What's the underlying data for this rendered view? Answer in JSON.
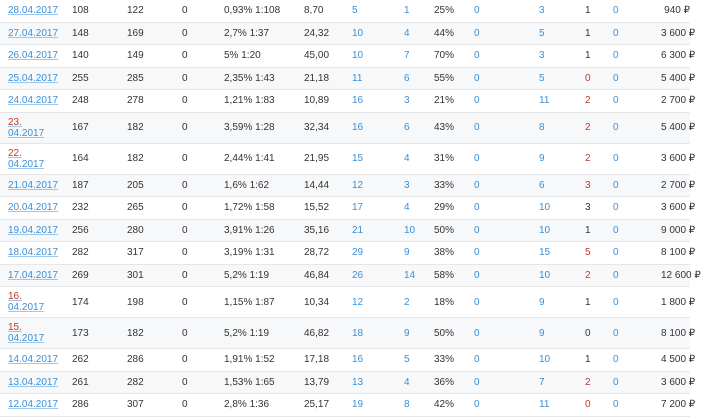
{
  "currency": "₽",
  "rows": [
    {
      "date": "28.04.2017",
      "split": false,
      "c1": "108",
      "c2": "122",
      "c3": "0",
      "c4": "0,93% 1:108",
      "c5": "8,70",
      "c6": "5",
      "c7": "1",
      "c8": "25%",
      "c9": "0",
      "c10": "3",
      "c11": "1",
      "c11red": false,
      "c12": "0",
      "c13": "940 ₽"
    },
    {
      "date": "27.04.2017",
      "split": false,
      "c1": "148",
      "c2": "169",
      "c3": "0",
      "c4": "2,7% 1:37",
      "c5": "24,32",
      "c6": "10",
      "c7": "4",
      "c8": "44%",
      "c9": "0",
      "c10": "5",
      "c11": "1",
      "c11red": false,
      "c12": "0",
      "c13": "3 600 ₽"
    },
    {
      "date": "26.04.2017",
      "split": false,
      "c1": "140",
      "c2": "149",
      "c3": "0",
      "c4": "5% 1:20",
      "c5": "45,00",
      "c6": "10",
      "c7": "7",
      "c8": "70%",
      "c9": "0",
      "c10": "3",
      "c11": "1",
      "c11red": false,
      "c12": "0",
      "c13": "6 300 ₽"
    },
    {
      "date": "25.04.2017",
      "split": false,
      "c1": "255",
      "c2": "285",
      "c3": "0",
      "c4": "2,35% 1:43",
      "c5": "21,18",
      "c6": "11",
      "c7": "6",
      "c8": "55%",
      "c9": "0",
      "c10": "5",
      "c11": "0",
      "c11red": true,
      "c12": "0",
      "c13": "5 400 ₽"
    },
    {
      "date": "24.04.2017",
      "split": false,
      "c1": "248",
      "c2": "278",
      "c3": "0",
      "c4": "1,21% 1:83",
      "c5": "10,89",
      "c6": "16",
      "c7": "3",
      "c8": "21%",
      "c9": "0",
      "c10": "11",
      "c11": "2",
      "c11red": true,
      "c12": "0",
      "c13": "2 700 ₽"
    },
    {
      "date1": "23.",
      "date2": "04.2017",
      "split": true,
      "c1": "167",
      "c2": "182",
      "c3": "0",
      "c4": "3,59% 1:28",
      "c5": "32,34",
      "c6": "16",
      "c7": "6",
      "c8": "43%",
      "c9": "0",
      "c10": "8",
      "c11": "2",
      "c11red": true,
      "c12": "0",
      "c13": "5 400 ₽"
    },
    {
      "date1": "22.",
      "date2": "04.2017",
      "split": true,
      "c1": "164",
      "c2": "182",
      "c3": "0",
      "c4": "2,44% 1:41",
      "c5": "21,95",
      "c6": "15",
      "c7": "4",
      "c8": "31%",
      "c9": "0",
      "c10": "9",
      "c11": "2",
      "c11red": true,
      "c12": "0",
      "c13": "3 600 ₽"
    },
    {
      "date": "21.04.2017",
      "split": false,
      "c1": "187",
      "c2": "205",
      "c3": "0",
      "c4": "1,6% 1:62",
      "c5": "14,44",
      "c6": "12",
      "c7": "3",
      "c8": "33%",
      "c9": "0",
      "c10": "6",
      "c11": "3",
      "c11red": true,
      "c12": "0",
      "c13": "2 700 ₽"
    },
    {
      "date": "20.04.2017",
      "split": false,
      "c1": "232",
      "c2": "265",
      "c3": "0",
      "c4": "1,72% 1:58",
      "c5": "15,52",
      "c6": "17",
      "c7": "4",
      "c8": "29%",
      "c9": "0",
      "c10": "10",
      "c11": "3",
      "c11red": false,
      "c12": "0",
      "c13": "3 600 ₽"
    },
    {
      "date": "19.04.2017",
      "split": false,
      "c1": "256",
      "c2": "280",
      "c3": "0",
      "c4": "3,91% 1:26",
      "c5": "35,16",
      "c6": "21",
      "c7": "10",
      "c8": "50%",
      "c9": "0",
      "c10": "10",
      "c11": "1",
      "c11red": false,
      "c12": "0",
      "c13": "9 000 ₽"
    },
    {
      "date": "18.04.2017",
      "split": false,
      "c1": "282",
      "c2": "317",
      "c3": "0",
      "c4": "3,19% 1:31",
      "c5": "28,72",
      "c6": "29",
      "c7": "9",
      "c8": "38%",
      "c9": "0",
      "c10": "15",
      "c11": "5",
      "c11red": true,
      "c12": "0",
      "c13": "8 100 ₽"
    },
    {
      "date": "17.04.2017",
      "split": false,
      "c1": "269",
      "c2": "301",
      "c3": "0",
      "c4": "5,2% 1:19",
      "c5": "46,84",
      "c6": "26",
      "c7": "14",
      "c8": "58%",
      "c9": "0",
      "c10": "10",
      "c11": "2",
      "c11red": true,
      "c12": "0",
      "c13": "12 600 ₽"
    },
    {
      "date1": "16.",
      "date2": "04.2017",
      "split": true,
      "c1": "174",
      "c2": "198",
      "c3": "0",
      "c4": "1,15% 1:87",
      "c5": "10,34",
      "c6": "12",
      "c7": "2",
      "c8": "18%",
      "c9": "0",
      "c10": "9",
      "c11": "1",
      "c11red": false,
      "c12": "0",
      "c13": "1 800 ₽"
    },
    {
      "date1": "15.",
      "date2": "04.2017",
      "split": true,
      "c1": "173",
      "c2": "182",
      "c3": "0",
      "c4": "5,2% 1:19",
      "c5": "46,82",
      "c6": "18",
      "c7": "9",
      "c8": "50%",
      "c9": "0",
      "c10": "9",
      "c11": "0",
      "c11red": false,
      "c12": "0",
      "c13": "8 100 ₽"
    },
    {
      "date": "14.04.2017",
      "split": false,
      "c1": "262",
      "c2": "286",
      "c3": "0",
      "c4": "1,91% 1:52",
      "c5": "17,18",
      "c6": "16",
      "c7": "5",
      "c8": "33%",
      "c9": "0",
      "c10": "10",
      "c11": "1",
      "c11red": false,
      "c12": "0",
      "c13": "4 500 ₽"
    },
    {
      "date": "13.04.2017",
      "split": false,
      "c1": "261",
      "c2": "282",
      "c3": "0",
      "c4": "1,53% 1:65",
      "c5": "13,79",
      "c6": "13",
      "c7": "4",
      "c8": "36%",
      "c9": "0",
      "c10": "7",
      "c11": "2",
      "c11red": true,
      "c12": "0",
      "c13": "3 600 ₽"
    },
    {
      "date": "12.04.2017",
      "split": false,
      "c1": "286",
      "c2": "307",
      "c3": "0",
      "c4": "2,8% 1:36",
      "c5": "25,17",
      "c6": "19",
      "c7": "8",
      "c8": "42%",
      "c9": "0",
      "c10": "11",
      "c11": "0",
      "c11red": true,
      "c12": "0",
      "c13": "7 200 ₽"
    }
  ]
}
